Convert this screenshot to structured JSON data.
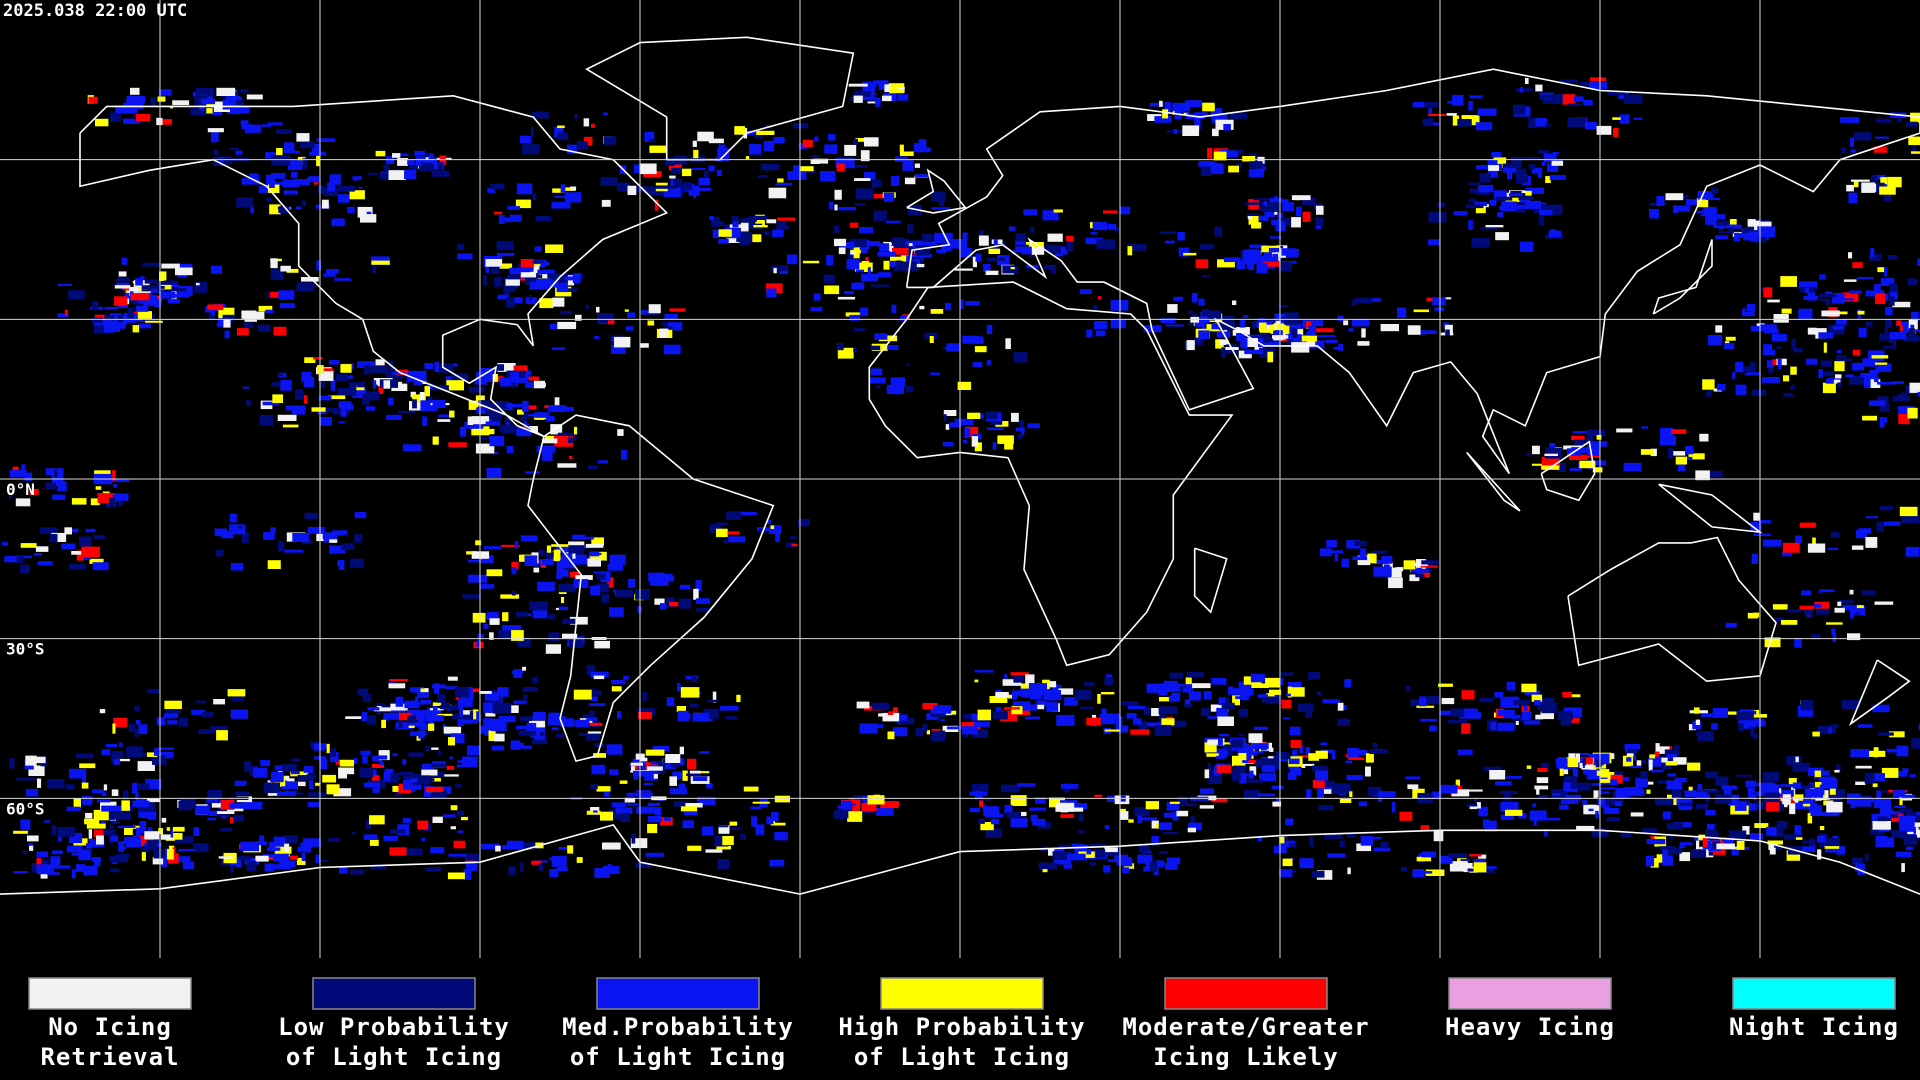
{
  "timestamp": "2025.038 22:00 UTC",
  "map": {
    "latitude_labels": [
      "0°N",
      "30°S",
      "60°S"
    ]
  },
  "legend": {
    "items": [
      {
        "color": "#f2f2f2",
        "lines": [
          "No Icing",
          "Retrieval"
        ]
      },
      {
        "color": "#000a78",
        "lines": [
          "Low Probability",
          "of Light Icing"
        ]
      },
      {
        "color": "#0a14f0",
        "lines": [
          "Med.Probability",
          "of Light Icing"
        ]
      },
      {
        "color": "#ffff00",
        "lines": [
          "High Probability",
          "of Light Icing"
        ]
      },
      {
        "color": "#ff0000",
        "lines": [
          "Moderate/Greater",
          "Icing Likely"
        ]
      },
      {
        "color": "#e8a0e0",
        "lines": [
          "Heavy Icing"
        ]
      },
      {
        "color": "#00ffff",
        "lines": [
          "Night Icing"
        ]
      }
    ]
  }
}
